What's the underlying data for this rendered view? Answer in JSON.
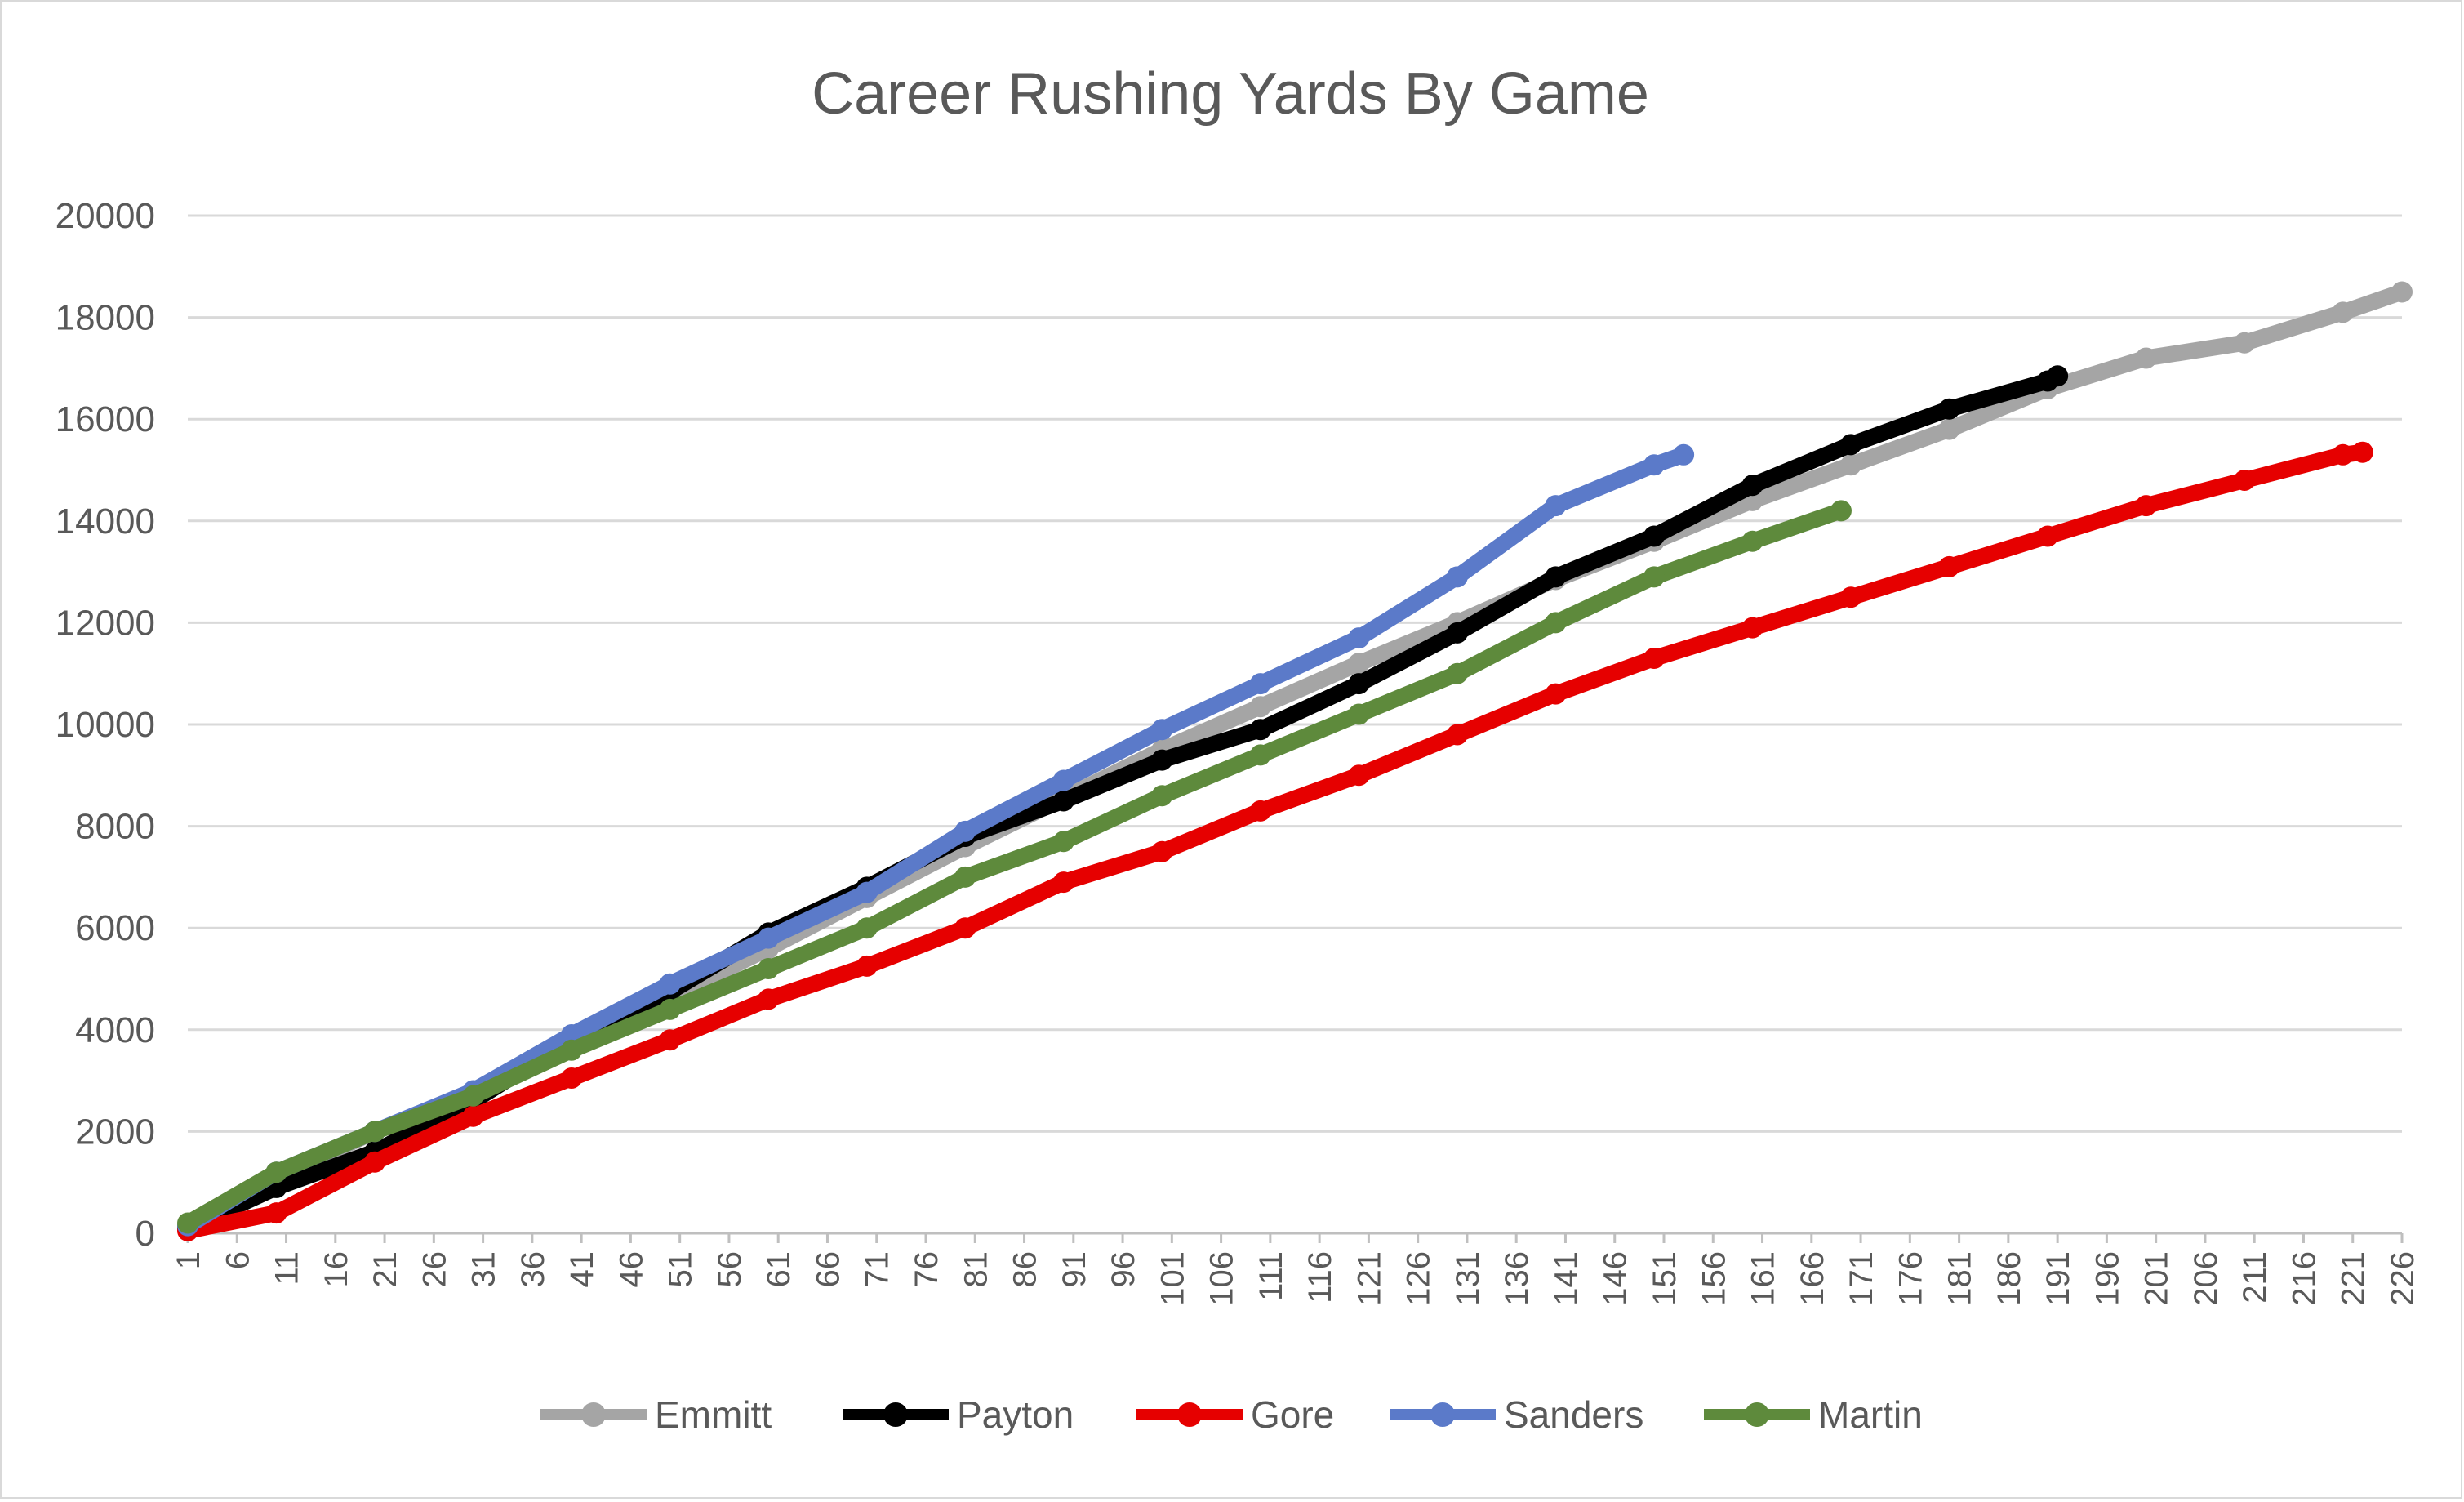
{
  "chart_data": {
    "type": "line",
    "title": "Career Rushing  Yards By Game",
    "xlabel": "",
    "ylabel": "",
    "x_range": [
      1,
      226
    ],
    "x_tick_step": 5,
    "ylim": [
      0,
      20000
    ],
    "y_ticks": [
      0,
      2000,
      4000,
      6000,
      8000,
      10000,
      12000,
      14000,
      16000,
      18000,
      20000
    ],
    "grid": "horizontal",
    "legend_position": "bottom",
    "markers": true,
    "series": [
      {
        "name": "Emmitt",
        "color": "#a5a5a5",
        "points": [
          [
            1,
            130
          ],
          [
            10,
            1100
          ],
          [
            20,
            2000
          ],
          [
            30,
            2700
          ],
          [
            40,
            3700
          ],
          [
            50,
            4650
          ],
          [
            60,
            5600
          ],
          [
            70,
            6600
          ],
          [
            80,
            7600
          ],
          [
            90,
            8550
          ],
          [
            100,
            9500
          ],
          [
            110,
            10350
          ],
          [
            120,
            11200
          ],
          [
            130,
            12000
          ],
          [
            140,
            12850
          ],
          [
            150,
            13600
          ],
          [
            160,
            14400
          ],
          [
            170,
            15100
          ],
          [
            180,
            15800
          ],
          [
            190,
            16600
          ],
          [
            200,
            17200
          ],
          [
            210,
            17500
          ],
          [
            220,
            18100
          ],
          [
            226,
            18500
          ]
        ]
      },
      {
        "name": "Payton",
        "color": "#000000",
        "points": [
          [
            1,
            100
          ],
          [
            10,
            900
          ],
          [
            20,
            1600
          ],
          [
            30,
            2600
          ],
          [
            40,
            3800
          ],
          [
            50,
            4750
          ],
          [
            60,
            5900
          ],
          [
            70,
            6800
          ],
          [
            80,
            7800
          ],
          [
            90,
            8500
          ],
          [
            100,
            9300
          ],
          [
            110,
            9900
          ],
          [
            120,
            10800
          ],
          [
            130,
            11800
          ],
          [
            140,
            12900
          ],
          [
            150,
            13700
          ],
          [
            160,
            14700
          ],
          [
            170,
            15500
          ],
          [
            180,
            16200
          ],
          [
            190,
            16750
          ],
          [
            191,
            16850
          ]
        ]
      },
      {
        "name": "Gore",
        "color": "#e60000",
        "points": [
          [
            1,
            50
          ],
          [
            10,
            400
          ],
          [
            20,
            1400
          ],
          [
            30,
            2300
          ],
          [
            40,
            3050
          ],
          [
            50,
            3800
          ],
          [
            60,
            4600
          ],
          [
            70,
            5250
          ],
          [
            80,
            6000
          ],
          [
            90,
            6900
          ],
          [
            100,
            7500
          ],
          [
            110,
            8300
          ],
          [
            120,
            9000
          ],
          [
            130,
            9800
          ],
          [
            140,
            10600
          ],
          [
            150,
            11300
          ],
          [
            160,
            11900
          ],
          [
            170,
            12500
          ],
          [
            180,
            13100
          ],
          [
            190,
            13700
          ],
          [
            200,
            14300
          ],
          [
            210,
            14800
          ],
          [
            220,
            15300
          ],
          [
            222,
            15350
          ]
        ]
      },
      {
        "name": "Sanders",
        "color": "#5b7ac9",
        "points": [
          [
            1,
            150
          ],
          [
            10,
            1200
          ],
          [
            20,
            2000
          ],
          [
            30,
            2800
          ],
          [
            40,
            3900
          ],
          [
            50,
            4900
          ],
          [
            60,
            5800
          ],
          [
            70,
            6700
          ],
          [
            80,
            7900
          ],
          [
            90,
            8900
          ],
          [
            100,
            9900
          ],
          [
            110,
            10800
          ],
          [
            120,
            11700
          ],
          [
            130,
            12900
          ],
          [
            140,
            14300
          ],
          [
            150,
            15100
          ],
          [
            153,
            15300
          ]
        ]
      },
      {
        "name": "Martin",
        "color": "#5e8a3c",
        "points": [
          [
            1,
            200
          ],
          [
            10,
            1200
          ],
          [
            20,
            2000
          ],
          [
            30,
            2700
          ],
          [
            40,
            3600
          ],
          [
            50,
            4400
          ],
          [
            60,
            5200
          ],
          [
            70,
            6000
          ],
          [
            80,
            7000
          ],
          [
            90,
            7700
          ],
          [
            100,
            8600
          ],
          [
            110,
            9400
          ],
          [
            120,
            10200
          ],
          [
            130,
            11000
          ],
          [
            140,
            12000
          ],
          [
            150,
            12900
          ],
          [
            160,
            13600
          ],
          [
            169,
            14200
          ]
        ]
      }
    ]
  }
}
